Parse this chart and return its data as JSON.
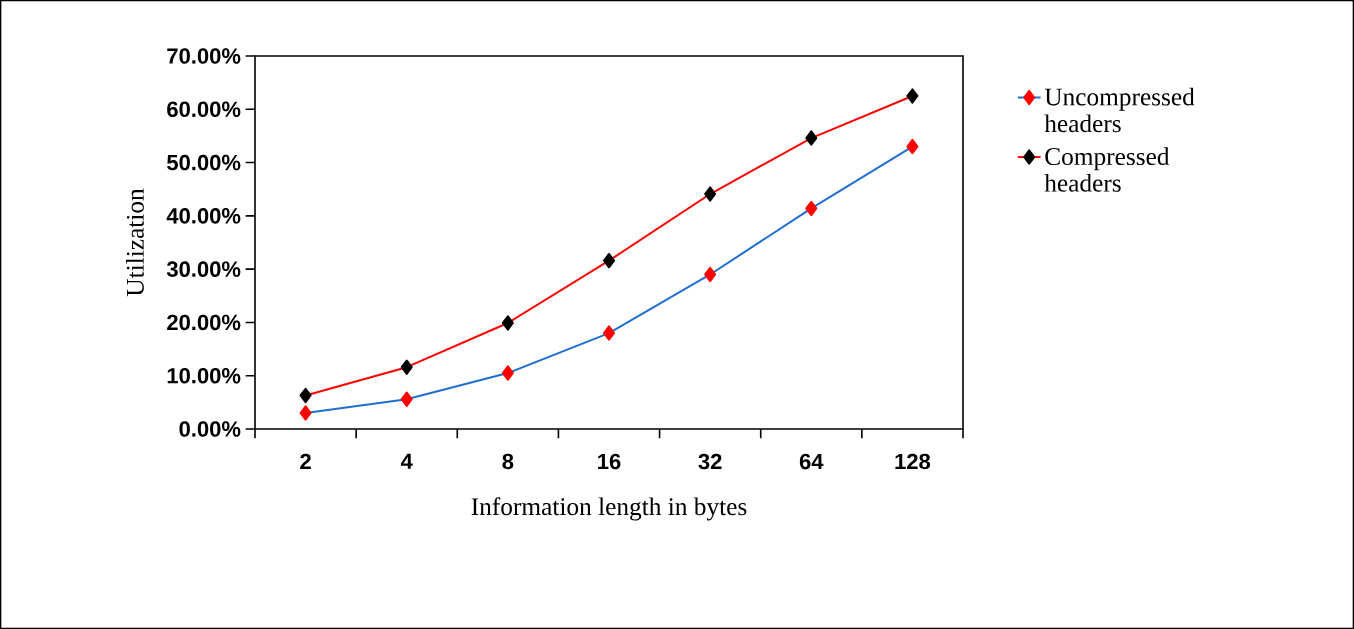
{
  "chart_data": {
    "type": "line",
    "xlabel": "Information length in bytes",
    "ylabel": "Utilization",
    "categories": [
      "2",
      "4",
      "8",
      "16",
      "32",
      "64",
      "128"
    ],
    "series": [
      {
        "name": "Uncompressed headers",
        "color": "#1f6fd0",
        "colors": [
          "#ff0000",
          "#ff0000",
          "#ff0000",
          "#ff0000",
          "#ff0000",
          "#ff0000",
          "#ff0000"
        ],
        "values": [
          3.0,
          5.6,
          10.5,
          18.0,
          29.0,
          41.4,
          53.0
        ]
      },
      {
        "name": "Compressed headers",
        "color": "#ff0000",
        "colors": [
          "#000000",
          "#000000",
          "#000000",
          "#000000",
          "#000000",
          "#000000",
          "#000000"
        ],
        "values": [
          6.3,
          11.6,
          19.9,
          31.6,
          44.1,
          54.6,
          62.5
        ]
      }
    ],
    "ylim": [
      0,
      70
    ],
    "yticks": [
      {
        "value": 0,
        "label": "0.00%"
      },
      {
        "value": 10,
        "label": "10.00%"
      },
      {
        "value": 20,
        "label": "20.00%"
      },
      {
        "value": 30,
        "label": "30.00%"
      },
      {
        "value": 40,
        "label": "40.00%"
      },
      {
        "value": 50,
        "label": "50.00%"
      },
      {
        "value": 60,
        "label": "60.00%"
      },
      {
        "value": 70,
        "label": "70.00%"
      }
    ],
    "grid": false,
    "legend": "right",
    "marker": "diamond",
    "line_style": "solid"
  }
}
